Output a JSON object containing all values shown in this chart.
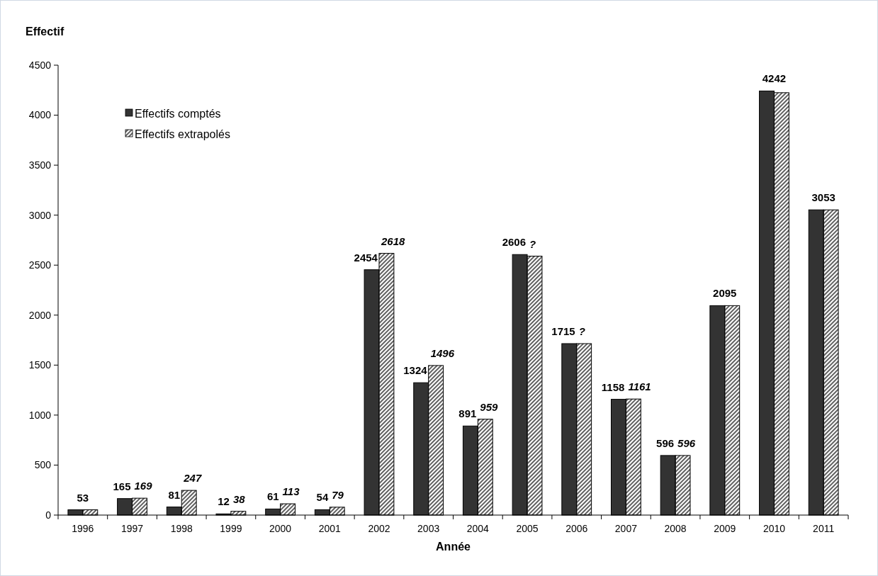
{
  "chart_data": {
    "type": "bar",
    "xlabel": "Année",
    "ylabel": "Effectif",
    "categories": [
      "1996",
      "1997",
      "1998",
      "1999",
      "2000",
      "2001",
      "2002",
      "2003",
      "2004",
      "2005",
      "2006",
      "2007",
      "2008",
      "2009",
      "2010",
      "2011"
    ],
    "series": [
      {
        "name": "Effectifs comptés",
        "color": "#333333",
        "values": [
          53,
          165,
          81,
          12,
          61,
          54,
          2454,
          1324,
          891,
          2606,
          1715,
          1158,
          596,
          2095,
          4242,
          3053
        ],
        "value_labels": [
          "53",
          "165",
          "81",
          "12",
          "61",
          "54",
          "2454",
          "1324",
          "891",
          "2606",
          "1715",
          "1158",
          "596",
          "2095",
          "4242",
          "3053"
        ]
      },
      {
        "name": "Effectifs extrapolés",
        "color": "#606060",
        "values": [
          53,
          169,
          247,
          38,
          113,
          79,
          2618,
          1496,
          959,
          2590,
          1715,
          1161,
          596,
          2095,
          4225,
          3053
        ],
        "value_labels": [
          null,
          "169",
          "247",
          "38",
          "113",
          "79",
          "2618",
          "1496",
          "959",
          "?",
          "?",
          "1161",
          "596",
          null,
          null,
          null
        ]
      }
    ],
    "ylim": [
      0,
      4500
    ],
    "yticks": [
      0,
      500,
      1000,
      1500,
      2000,
      2500,
      3000,
      3500,
      4000,
      4500
    ],
    "legend": "top left"
  }
}
